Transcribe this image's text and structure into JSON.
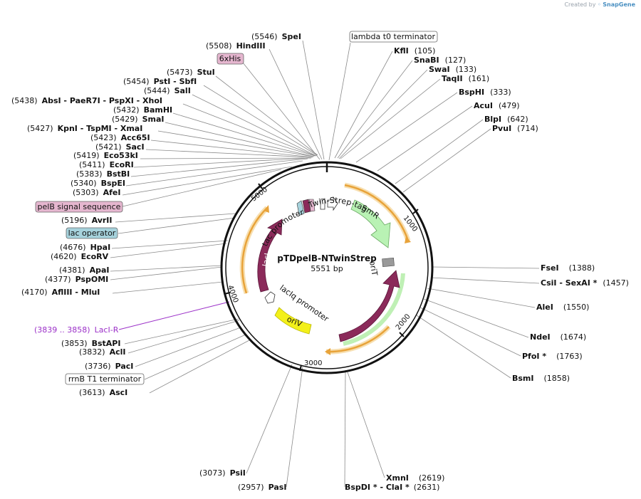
{
  "credit": {
    "prefix": "Created by",
    "brand": "SnapGene"
  },
  "plasmid": {
    "name": "pTDpelB-NTwinStrep",
    "length_label": "5551 bp"
  },
  "ticks": [
    "1000",
    "2000",
    "3000",
    "4000",
    "5000"
  ],
  "sites_top": [
    {
      "name": "SpeI",
      "pos": "(5546)",
      "pos_first": true
    },
    {
      "name": "HindIII",
      "pos": "(5508)",
      "pos_first": true
    }
  ],
  "sites_left": [
    {
      "name": "StuI",
      "pos": "(5473)"
    },
    {
      "name": "PstI   - SbfI",
      "pos": "(5454)"
    },
    {
      "name": "SalI",
      "pos": "(5444)"
    },
    {
      "name": "AbsI   - PaeR7I   - PspXI   - XhoI",
      "pos": "(5438)"
    },
    {
      "name": "BamHI",
      "pos": "(5432)"
    },
    {
      "name": "SmaI",
      "pos": "(5429)"
    },
    {
      "name": "KpnI   - TspMI   - XmaI",
      "pos": "(5427)"
    },
    {
      "name": "Acc65I",
      "pos": "(5423)"
    },
    {
      "name": "SacI",
      "pos": "(5421)"
    },
    {
      "name": "Eco53kI",
      "pos": "(5419)"
    },
    {
      "name": "EcoRI",
      "pos": "(5411)"
    },
    {
      "name": "BstBI",
      "pos": "(5383)"
    },
    {
      "name": "BspEI",
      "pos": "(5340)"
    },
    {
      "name": "AfeI",
      "pos": "(5303)"
    },
    {
      "name": "AvrII",
      "pos": "(5196)"
    },
    {
      "name": "HpaI",
      "pos": "(4676)"
    },
    {
      "name": "EcoRV",
      "pos": "(4620)"
    },
    {
      "name": "ApaI",
      "pos": "(4381)"
    },
    {
      "name": "PspOMI",
      "pos": "(4377)"
    },
    {
      "name": "AflIII   - MluI",
      "pos": "(4170)"
    },
    {
      "name": "BstAPI",
      "pos": "(3853)"
    },
    {
      "name": "AclI",
      "pos": "(3832)"
    },
    {
      "name": "PacI",
      "pos": "(3736)"
    },
    {
      "name": "AscI",
      "pos": "(3613)"
    }
  ],
  "sites_right": [
    {
      "name": "KflI",
      "pos": "(105)"
    },
    {
      "name": "SnaBI",
      "pos": "(127)"
    },
    {
      "name": "SwaI",
      "pos": "(133)"
    },
    {
      "name": "TaqII",
      "pos": "(161)"
    },
    {
      "name": "BspHI",
      "pos": "(333)"
    },
    {
      "name": "AcuI",
      "pos": "(479)"
    },
    {
      "name": "BlpI",
      "pos": "(642)"
    },
    {
      "name": "PvuI",
      "pos": "(714)"
    },
    {
      "name": "FseI",
      "pos": "(1388)"
    },
    {
      "name": "CsiI   - SexAI *",
      "pos": "(1457)"
    },
    {
      "name": "AleI",
      "pos": "(1550)"
    },
    {
      "name": "NdeI",
      "pos": "(1674)"
    },
    {
      "name": "PfoI *",
      "pos": "(1763)"
    },
    {
      "name": "BsmI",
      "pos": "(1858)"
    }
  ],
  "sites_bottom": [
    {
      "name": "PsiI",
      "pos": "(3073)"
    },
    {
      "name": "PasI",
      "pos": "(2957)"
    },
    {
      "name": "XmnI",
      "pos": "(2619)"
    },
    {
      "name": "BspDI *   - ClaI *",
      "pos": "(2631)"
    }
  ],
  "feature_boxes": [
    {
      "label": "lambda t0 terminator",
      "fill": "#ffffff"
    },
    {
      "label": "6xHis",
      "fill": "#e5b6cf"
    },
    {
      "label": "pelB signal sequence",
      "fill": "#e5b6cf"
    },
    {
      "label": "lac operator",
      "fill": "#a6d2dc"
    },
    {
      "label": "rrnB T1 terminator",
      "fill": "#ffffff"
    }
  ],
  "primer": {
    "pos": "(3839 .. 3858)",
    "name": "LacI-R",
    "color": "#9b30c8"
  },
  "arc_labels": {
    "smr": "SmR",
    "lacI": "lacI",
    "trfA": "trfA",
    "oriV": "oriV",
    "twin_strep": "Twin-Strep-tag",
    "tac_promoter": "tac promoter",
    "laciq_promoter": "lacIq promoter",
    "orit": "oriT"
  },
  "colors": {
    "cds": "#8b2a5a",
    "smr": "#b9f2b4",
    "orange": "#e8a33a",
    "oriv": "#f3f01a",
    "ring": "#111111"
  }
}
